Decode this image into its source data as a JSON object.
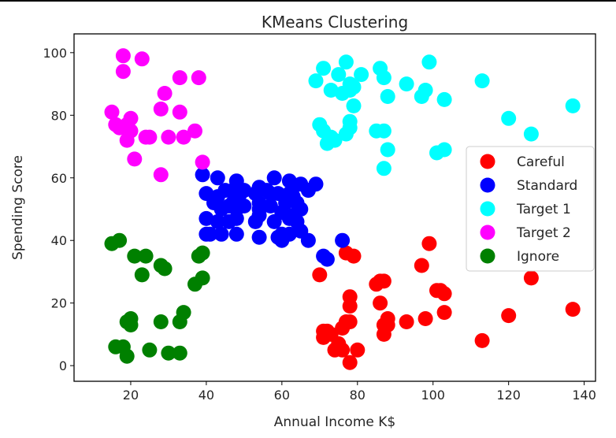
{
  "chart_data": {
    "type": "scatter",
    "title": "KMeans Clustering",
    "xlabel": "Annual Income K$",
    "ylabel": "Spending Score",
    "xlim": [
      5,
      143
    ],
    "ylim": [
      -5,
      106
    ],
    "xticks": [
      20,
      40,
      60,
      80,
      100,
      120,
      140
    ],
    "yticks": [
      0,
      20,
      40,
      60,
      80,
      100
    ],
    "grid": false,
    "legend_position": "center-right",
    "series": [
      {
        "name": "Careful",
        "color": "#ff0000",
        "points": [
          [
            70,
            29
          ],
          [
            71,
            11
          ],
          [
            71,
            9
          ],
          [
            72,
            11
          ],
          [
            73,
            10
          ],
          [
            74,
            5
          ],
          [
            75,
            7
          ],
          [
            76,
            5
          ],
          [
            76,
            12
          ],
          [
            77,
            36
          ],
          [
            77,
            14
          ],
          [
            78,
            1
          ],
          [
            78,
            19
          ],
          [
            78,
            22
          ],
          [
            78,
            14
          ],
          [
            79,
            35
          ],
          [
            80,
            5
          ],
          [
            85,
            26
          ],
          [
            86,
            27
          ],
          [
            86,
            20
          ],
          [
            87,
            27
          ],
          [
            87,
            13
          ],
          [
            87,
            10
          ],
          [
            88,
            15
          ],
          [
            88,
            13
          ],
          [
            93,
            14
          ],
          [
            97,
            32
          ],
          [
            98,
            15
          ],
          [
            99,
            39
          ],
          [
            101,
            24
          ],
          [
            102,
            24
          ],
          [
            103,
            23
          ],
          [
            103,
            17
          ],
          [
            113,
            8
          ],
          [
            120,
            16
          ],
          [
            126,
            28
          ],
          [
            137,
            18
          ]
        ]
      },
      {
        "name": "Standard",
        "color": "#0000ff",
        "points": [
          [
            39,
            61
          ],
          [
            40,
            55
          ],
          [
            40,
            47
          ],
          [
            40,
            42
          ],
          [
            41,
            42
          ],
          [
            42,
            52
          ],
          [
            43,
            60
          ],
          [
            43,
            54
          ],
          [
            43,
            46
          ],
          [
            44,
            50
          ],
          [
            44,
            42
          ],
          [
            45,
            56
          ],
          [
            46,
            51
          ],
          [
            46,
            46
          ],
          [
            47,
            56
          ],
          [
            47,
            52
          ],
          [
            48,
            59
          ],
          [
            48,
            50
          ],
          [
            48,
            47
          ],
          [
            48,
            42
          ],
          [
            49,
            55
          ],
          [
            50,
            56
          ],
          [
            50,
            51
          ],
          [
            53,
            46
          ],
          [
            53,
            55
          ],
          [
            54,
            57
          ],
          [
            54,
            41
          ],
          [
            54,
            48
          ],
          [
            54,
            52
          ],
          [
            54,
            50
          ],
          [
            56,
            56
          ],
          [
            57,
            55
          ],
          [
            57,
            51
          ],
          [
            58,
            60
          ],
          [
            58,
            46
          ],
          [
            59,
            55
          ],
          [
            59,
            41
          ],
          [
            60,
            49
          ],
          [
            60,
            40
          ],
          [
            60,
            42
          ],
          [
            61,
            52
          ],
          [
            62,
            47
          ],
          [
            62,
            42
          ],
          [
            62,
            59
          ],
          [
            62,
            55
          ],
          [
            63,
            57
          ],
          [
            63,
            48
          ],
          [
            63,
            54
          ],
          [
            64,
            52
          ],
          [
            64,
            46
          ],
          [
            65,
            58
          ],
          [
            65,
            50
          ],
          [
            65,
            43
          ],
          [
            67,
            56
          ],
          [
            67,
            40
          ],
          [
            69,
            58
          ],
          [
            71,
            35
          ],
          [
            72,
            34
          ],
          [
            76,
            40
          ]
        ]
      },
      {
        "name": "Target 1",
        "color": "#00ffff",
        "points": [
          [
            69,
            91
          ],
          [
            70,
            77
          ],
          [
            71,
            95
          ],
          [
            71,
            75
          ],
          [
            72,
            71
          ],
          [
            73,
            88
          ],
          [
            73,
            73
          ],
          [
            74,
            72
          ],
          [
            75,
            93
          ],
          [
            76,
            87
          ],
          [
            77,
            97
          ],
          [
            77,
            74
          ],
          [
            78,
            90
          ],
          [
            78,
            88
          ],
          [
            78,
            76
          ],
          [
            78,
            78
          ],
          [
            79,
            89
          ],
          [
            79,
            83
          ],
          [
            81,
            93
          ],
          [
            85,
            75
          ],
          [
            86,
            95
          ],
          [
            87,
            75
          ],
          [
            87,
            92
          ],
          [
            87,
            63
          ],
          [
            88,
            86
          ],
          [
            88,
            69
          ],
          [
            93,
            90
          ],
          [
            97,
            86
          ],
          [
            98,
            88
          ],
          [
            99,
            97
          ],
          [
            101,
            68
          ],
          [
            103,
            85
          ],
          [
            103,
            69
          ],
          [
            113,
            91
          ],
          [
            120,
            79
          ],
          [
            126,
            74
          ],
          [
            137,
            83
          ]
        ]
      },
      {
        "name": "Target 2",
        "color": "#ff00ff",
        "points": [
          [
            15,
            81
          ],
          [
            16,
            77
          ],
          [
            17,
            76
          ],
          [
            18,
            94
          ],
          [
            18,
            99
          ],
          [
            19,
            72
          ],
          [
            19,
            77
          ],
          [
            20,
            79
          ],
          [
            20,
            75
          ],
          [
            21,
            66
          ],
          [
            23,
            98
          ],
          [
            24,
            73
          ],
          [
            25,
            73
          ],
          [
            28,
            82
          ],
          [
            28,
            61
          ],
          [
            29,
            87
          ],
          [
            30,
            73
          ],
          [
            33,
            92
          ],
          [
            33,
            81
          ],
          [
            34,
            73
          ],
          [
            37,
            75
          ],
          [
            38,
            92
          ],
          [
            39,
            65
          ]
        ]
      },
      {
        "name": "Ignore",
        "color": "#008000",
        "points": [
          [
            15,
            39
          ],
          [
            16,
            6
          ],
          [
            17,
            40
          ],
          [
            18,
            6
          ],
          [
            19,
            3
          ],
          [
            19,
            14
          ],
          [
            20,
            15
          ],
          [
            20,
            13
          ],
          [
            21,
            35
          ],
          [
            23,
            29
          ],
          [
            24,
            35
          ],
          [
            25,
            5
          ],
          [
            28,
            14
          ],
          [
            28,
            32
          ],
          [
            29,
            31
          ],
          [
            30,
            4
          ],
          [
            33,
            4
          ],
          [
            33,
            14
          ],
          [
            34,
            17
          ],
          [
            37,
            26
          ],
          [
            38,
            35
          ],
          [
            39,
            36
          ],
          [
            39,
            28
          ]
        ]
      }
    ]
  }
}
